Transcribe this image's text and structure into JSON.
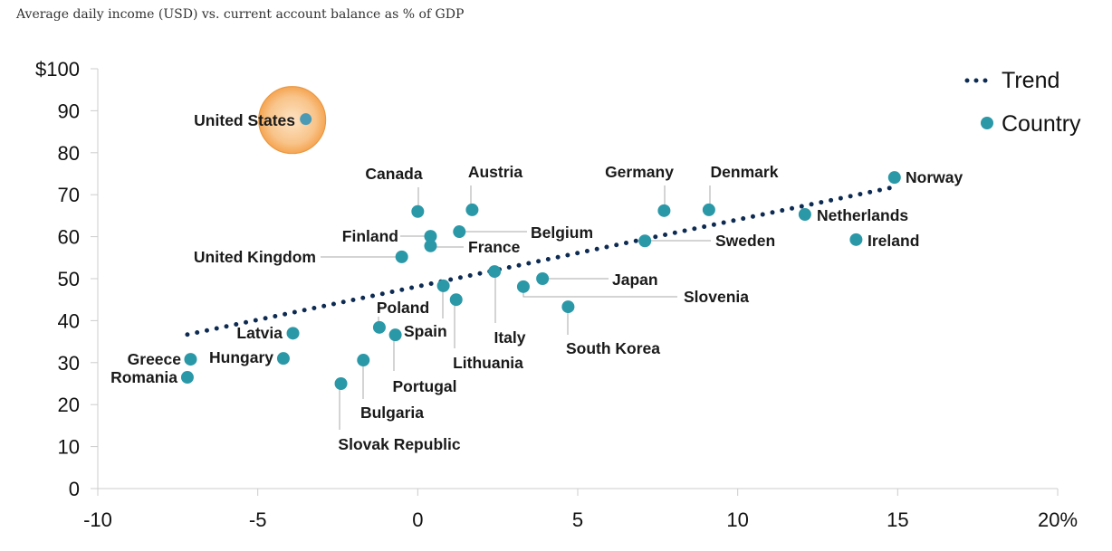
{
  "subtitle": "Average daily income (USD) vs. current account balance as % of GDP",
  "chart_data": {
    "type": "scatter",
    "title": "",
    "xlabel": "",
    "ylabel": "",
    "xlim": [
      -10,
      20
    ],
    "ylim": [
      0,
      100
    ],
    "x_ticks": [
      -10,
      -5,
      0,
      5,
      10,
      15,
      20
    ],
    "x_tick_labels": [
      "-10",
      "-5",
      "0",
      "5",
      "10",
      "15",
      "20%"
    ],
    "y_ticks": [
      0,
      10,
      20,
      30,
      40,
      50,
      60,
      70,
      80,
      90,
      100
    ],
    "y_tick_labels": [
      "0",
      "10",
      "20",
      "30",
      "40",
      "50",
      "60",
      "70",
      "80",
      "90",
      "$100"
    ],
    "grid": false,
    "legend": {
      "placement": "top-right",
      "entries": [
        "Trend",
        "Country"
      ]
    },
    "colors": {
      "country": "#2b98a8",
      "trend": "#0d2b52",
      "highlight": "#f5a552"
    },
    "highlight": "United States",
    "trend": {
      "x": [
        -7.2,
        15
      ],
      "y": [
        36.7,
        72
      ]
    },
    "points": [
      {
        "name": "United States",
        "x": -3.5,
        "y": 88
      },
      {
        "name": "Canada",
        "x": 0.0,
        "y": 66
      },
      {
        "name": "Austria",
        "x": 1.7,
        "y": 66.4
      },
      {
        "name": "Germany",
        "x": 7.7,
        "y": 66.2
      },
      {
        "name": "Denmark",
        "x": 9.1,
        "y": 66.4
      },
      {
        "name": "Norway",
        "x": 14.9,
        "y": 74.1
      },
      {
        "name": "Netherlands",
        "x": 12.1,
        "y": 65.3
      },
      {
        "name": "Ireland",
        "x": 13.7,
        "y": 59.3
      },
      {
        "name": "Sweden",
        "x": 7.1,
        "y": 59
      },
      {
        "name": "Belgium",
        "x": 1.3,
        "y": 61.2
      },
      {
        "name": "Finland",
        "x": 0.4,
        "y": 60.1
      },
      {
        "name": "France",
        "x": 0.4,
        "y": 57.8
      },
      {
        "name": "United Kingdom",
        "x": -0.5,
        "y": 55.2
      },
      {
        "name": "Italy",
        "x": 2.4,
        "y": 51.7
      },
      {
        "name": "Japan",
        "x": 3.9,
        "y": 50
      },
      {
        "name": "Slovenia",
        "x": 3.3,
        "y": 48.1
      },
      {
        "name": "South Korea",
        "x": 4.7,
        "y": 43.3
      },
      {
        "name": "Lithuania",
        "x": 1.2,
        "y": 45
      },
      {
        "name": "Spain",
        "x": 0.8,
        "y": 48.3
      },
      {
        "name": "Poland",
        "x": -1.2,
        "y": 38.4
      },
      {
        "name": "Portugal",
        "x": -0.7,
        "y": 36.6
      },
      {
        "name": "Latvia",
        "x": -3.9,
        "y": 37
      },
      {
        "name": "Hungary",
        "x": -4.2,
        "y": 31
      },
      {
        "name": "Greece",
        "x": -7.1,
        "y": 30.8
      },
      {
        "name": "Romania",
        "x": -7.2,
        "y": 26.5
      },
      {
        "name": "Bulgaria",
        "x": -1.7,
        "y": 30.6
      },
      {
        "name": "Slovak Republic",
        "x": -2.4,
        "y": 25
      }
    ]
  }
}
